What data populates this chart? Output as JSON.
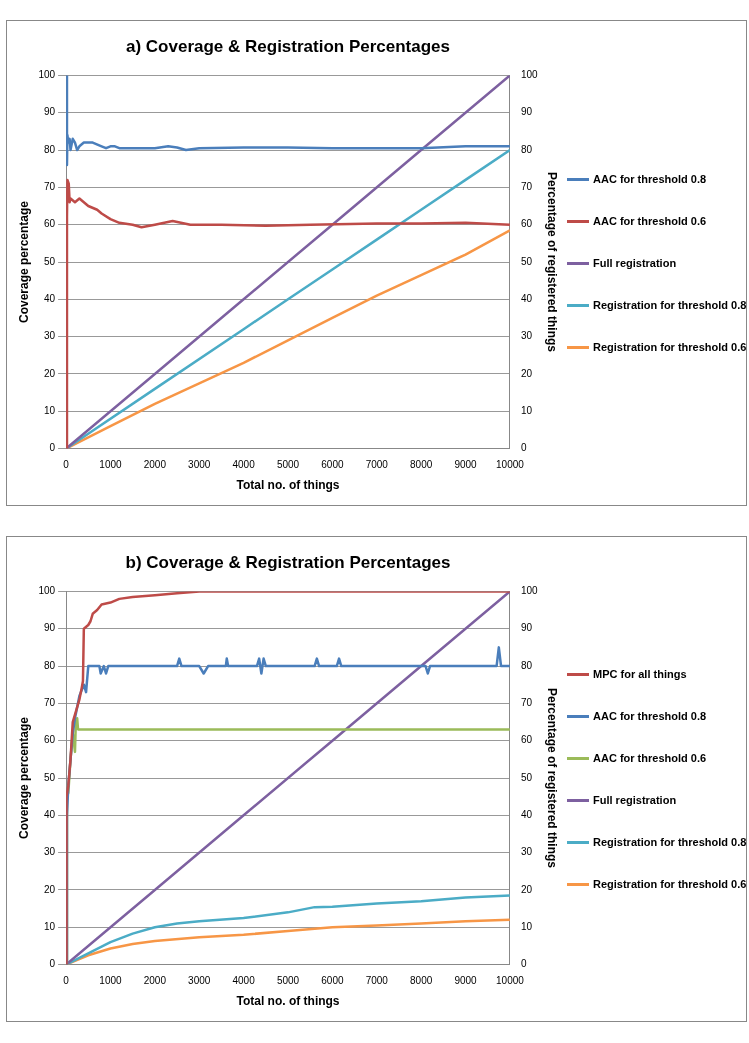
{
  "chart_data": [
    {
      "type": "line",
      "title": "a) Coverage & Registration Percentages",
      "xlabel": "Total no. of things",
      "ylabel": "Coverage percentage",
      "y2label": "Percentage of registered things",
      "xlim": [
        0,
        10000
      ],
      "xticks": [
        0,
        1000,
        2000,
        3000,
        4000,
        5000,
        6000,
        7000,
        8000,
        9000,
        10000
      ],
      "ylim": [
        0,
        100
      ],
      "yticks": [
        0,
        10,
        20,
        30,
        40,
        50,
        60,
        70,
        80,
        90,
        100
      ],
      "y2lim": [
        0,
        100
      ],
      "y2ticks": [
        0,
        10,
        20,
        30,
        40,
        50,
        60,
        70,
        80,
        90,
        100
      ],
      "grid": "y",
      "legend": "right",
      "marker": "none",
      "line_style": "solid",
      "series": [
        {
          "name": "AAC for threshold 0.8",
          "color": "#4a7ebb",
          "x": [
            0,
            20,
            30,
            50,
            80,
            100,
            150,
            200,
            250,
            300,
            400,
            500,
            600,
            800,
            900,
            1000,
            1100,
            1200,
            1500,
            2000,
            2300,
            2500,
            2700,
            3000,
            4000,
            5000,
            6000,
            7000,
            8000,
            9000,
            10000
          ],
          "values": [
            100,
            76,
            84,
            82,
            83,
            80,
            83,
            82,
            80,
            81,
            82,
            82,
            82,
            81,
            80.5,
            81,
            81,
            80.5,
            80.5,
            80.5,
            81,
            80.7,
            80,
            80.5,
            80.7,
            80.7,
            80.5,
            80.5,
            80.5,
            81,
            81
          ]
        },
        {
          "name": "AAC for threshold 0.6",
          "color": "#be4b48",
          "x": [
            0,
            20,
            30,
            60,
            80,
            100,
            200,
            300,
            400,
            500,
            700,
            800,
            1000,
            1200,
            1500,
            1700,
            2000,
            2400,
            2800,
            3500,
            4500,
            5500,
            7000,
            8000,
            9000,
            10000
          ],
          "values": [
            0,
            62,
            72,
            71,
            66,
            67,
            66,
            67,
            66,
            65,
            64,
            63,
            61.5,
            60.5,
            60,
            59.3,
            60,
            61,
            60,
            60,
            59.7,
            60,
            60.3,
            60.3,
            60.5,
            60
          ]
        },
        {
          "name": "Full registration",
          "color": "#7d60a0",
          "x": [
            0,
            2000,
            4000,
            6000,
            8000,
            10000
          ],
          "values": [
            0,
            20,
            40,
            60,
            80,
            100
          ]
        },
        {
          "name": "Registration for threshold 0.8",
          "color": "#4bacc6",
          "x": [
            0,
            2000,
            4000,
            5000,
            6000,
            7000,
            8000,
            9000,
            10000
          ],
          "values": [
            0,
            16,
            32,
            40,
            48,
            56,
            64,
            72,
            80
          ]
        },
        {
          "name": "Registration for threshold 0.6",
          "color": "#f79646",
          "x": [
            0,
            1000,
            2000,
            3000,
            4000,
            5000,
            6000,
            7000,
            8000,
            9000,
            10000
          ],
          "values": [
            0,
            6,
            12,
            17.5,
            23,
            29,
            35,
            41,
            46.5,
            52,
            58.5
          ]
        }
      ]
    },
    {
      "type": "line",
      "title": "b) Coverage & Registration Percentages",
      "xlabel": "Total no. of things",
      "ylabel": "Coverage percentage",
      "y2label": "Percentage of registered things",
      "xlim": [
        0,
        10000
      ],
      "xticks": [
        0,
        1000,
        2000,
        3000,
        4000,
        5000,
        6000,
        7000,
        8000,
        9000,
        10000
      ],
      "ylim": [
        0,
        100
      ],
      "yticks": [
        0,
        10,
        20,
        30,
        40,
        50,
        60,
        70,
        80,
        90,
        100
      ],
      "y2lim": [
        0,
        100
      ],
      "y2ticks": [
        0,
        10,
        20,
        30,
        40,
        50,
        60,
        70,
        80,
        90,
        100
      ],
      "grid": "y",
      "legend": "right",
      "marker": "none",
      "line_style": "solid",
      "series": [
        {
          "name": "MPC for all things",
          "color": "#be4b48",
          "x": [
            0,
            10,
            50,
            100,
            150,
            200,
            300,
            350,
            380,
            400,
            500,
            550,
            600,
            700,
            800,
            1000,
            1200,
            1500,
            2000,
            2500,
            3000,
            10000
          ],
          "values": [
            0,
            45,
            48,
            55,
            65,
            67,
            71,
            74,
            76,
            90,
            91,
            92,
            94,
            95,
            96.5,
            97,
            98,
            98.5,
            99,
            99.5,
            100,
            100
          ]
        },
        {
          "name": "AAC for threshold 0.8",
          "color": "#4a7ebb",
          "x": [
            0,
            20,
            50,
            100,
            150,
            200,
            300,
            400,
            450,
            500,
            750,
            780,
            850,
            900,
            950,
            2500,
            2550,
            2600,
            3000,
            3100,
            3200,
            3600,
            3620,
            3650,
            4300,
            4350,
            4400,
            4450,
            4500,
            5600,
            5650,
            5700,
            6100,
            6150,
            6200,
            8100,
            8150,
            8200,
            9700,
            9750,
            9800,
            10000
          ],
          "values": [
            0,
            40,
            48,
            55,
            62,
            66,
            72,
            75,
            73,
            80,
            80,
            78,
            80,
            78,
            80,
            80,
            82,
            80,
            80,
            78,
            80,
            80,
            82,
            80,
            80,
            82,
            78,
            82,
            80,
            80,
            82,
            80,
            80,
            82,
            80,
            80,
            78,
            80,
            80,
            85,
            80,
            80
          ]
        },
        {
          "name": "AAC for threshold 0.6",
          "color": "#9bbb59",
          "x": [
            0,
            20,
            50,
            100,
            150,
            200,
            220,
            250,
            270,
            10000
          ],
          "values": [
            0,
            45,
            46,
            55,
            62,
            57,
            65,
            66,
            63,
            63
          ]
        },
        {
          "name": "Full registration",
          "color": "#7d60a0",
          "x": [
            0,
            2000,
            4000,
            6000,
            8000,
            10000
          ],
          "values": [
            0,
            20,
            40,
            60,
            80,
            100
          ]
        },
        {
          "name": "Registration for threshold 0.8",
          "color": "#4bacc6",
          "x": [
            0,
            500,
            1000,
            1500,
            2000,
            2500,
            3000,
            4000,
            5000,
            5600,
            6000,
            7000,
            8000,
            9000,
            10000
          ],
          "values": [
            0,
            3,
            6,
            8.3,
            10,
            11,
            11.6,
            12.5,
            14,
            15.4,
            15.5,
            16.4,
            17,
            18,
            18.5
          ]
        },
        {
          "name": "Registration for threshold 0.6",
          "color": "#f79646",
          "x": [
            0,
            500,
            1000,
            1500,
            2000,
            3000,
            4000,
            5000,
            6000,
            7000,
            8000,
            9000,
            10000
          ],
          "values": [
            0,
            2.5,
            4.3,
            5.5,
            6.3,
            7.3,
            8,
            9,
            10,
            10.5,
            11,
            11.6,
            12
          ]
        }
      ]
    }
  ]
}
